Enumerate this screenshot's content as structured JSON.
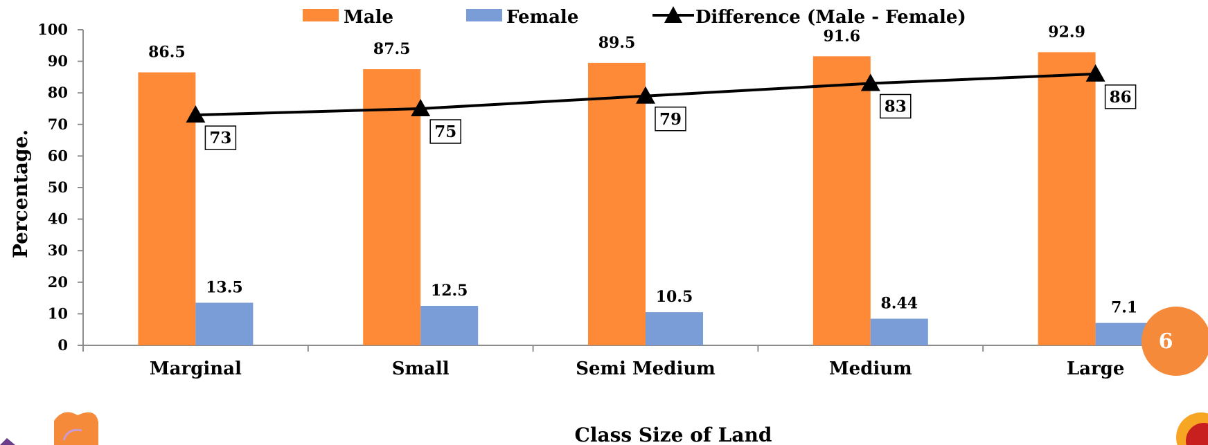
{
  "chart_data": {
    "type": "bar",
    "categories": [
      "Marginal",
      "Small",
      "Semi Medium",
      "Medium",
      "Large"
    ],
    "series": [
      {
        "name": "Male",
        "type": "bar",
        "color": "#fe8a38",
        "values": [
          86.5,
          87.5,
          89.5,
          91.6,
          92.9
        ],
        "labels": [
          "86.5",
          "87.5",
          "89.5",
          "91.6",
          "92.9"
        ]
      },
      {
        "name": "Female",
        "type": "bar",
        "color": "#7a9dd8",
        "values": [
          13.5,
          12.5,
          10.5,
          8.44,
          7.1
        ],
        "labels": [
          "13.5",
          "12.5",
          "10.5",
          "8.44",
          "7.1"
        ]
      },
      {
        "name": "Difference (Male - Female)",
        "type": "line",
        "marker": "triangle",
        "color": "#000000",
        "values": [
          73,
          75,
          79,
          83,
          86
        ],
        "labels": [
          "73",
          "75",
          "79",
          "83",
          "86"
        ]
      }
    ],
    "xlabel": "Class Size of Land",
    "ylabel": "Percentage.",
    "ylim": [
      0,
      100
    ],
    "yticks": [
      "0",
      "10",
      "20",
      "30",
      "40",
      "50",
      "60",
      "70",
      "80",
      "90",
      "100"
    ],
    "grid": false,
    "legend_position": "top"
  },
  "slide_number": "6"
}
